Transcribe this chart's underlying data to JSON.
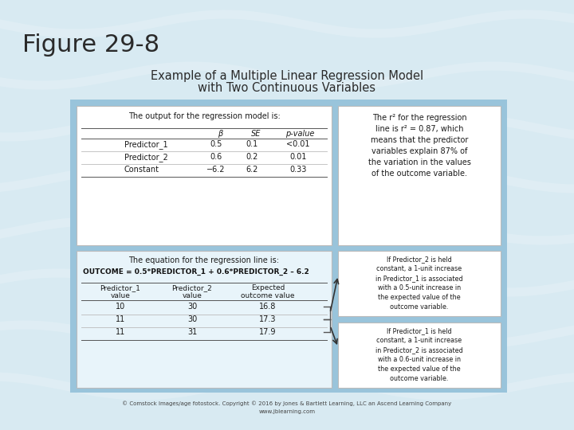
{
  "title_main": "Figure 29-8",
  "title_sub1": "Example of a Multiple Linear Regression Model",
  "title_sub2": "with Two Continuous Variables",
  "fig_bg": "#d8eaf2",
  "top_table_title": "The output for the regression model is:",
  "top_table_cols": [
    "β",
    "SE",
    "p-value"
  ],
  "top_table_rows": [
    [
      "Predictor_1",
      "0.5",
      "0.1",
      "<0.01"
    ],
    [
      "Predictor_2",
      "0.6",
      "0.2",
      "0.01"
    ],
    [
      "Constant",
      "−6.2",
      "6.2",
      "0.33"
    ]
  ],
  "r2_lines": [
    "The r² for the regression",
    "line is r² = 0.87, which",
    "means that the predictor",
    "variables explain 87% of",
    "the variation in the values",
    "of the outcome variable."
  ],
  "eq_title": "The equation for the regression line is:",
  "equation": "OUTCOME = 0.5*PREDICTOR_1 + 0.6*PREDICTOR_2 – 6.2",
  "bot_table_col1": [
    "Predictor_1",
    "value"
  ],
  "bot_table_col2": [
    "Predictor_2",
    "value"
  ],
  "bot_table_col3": [
    "Expected",
    "outcome value"
  ],
  "bot_table_rows": [
    [
      "10",
      "30",
      "16.8"
    ],
    [
      "11",
      "30",
      "17.3"
    ],
    [
      "11",
      "31",
      "17.9"
    ]
  ],
  "note1_lines": [
    "If Predictor_2 is held",
    "constant, a 1-unit increase",
    "in Predictor_1 is associated",
    "with a 0.5-unit increase in",
    "the expected value of the",
    "outcome variable."
  ],
  "note2_lines": [
    "If Predictor_1 is held",
    "constant, a 1-unit increase",
    "in Predictor_2 is associated",
    "with a 0.6-unit increase in",
    "the expected value of the",
    "outcome variable."
  ],
  "outer_box_color": "#99c4db",
  "white": "#ffffff",
  "bottom_section_bg": "#e8f4fa",
  "copyright": "© Comstock Images/age fotostock. Copyright © 2016 by Jones & Bartlett Learning, LLC an Ascend Learning Company",
  "website": "www.jblearning.com"
}
